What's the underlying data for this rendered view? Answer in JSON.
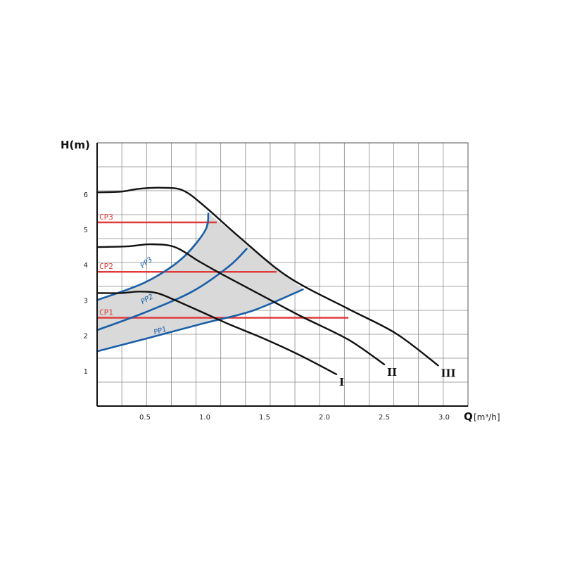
{
  "chart_data": {
    "type": "line",
    "ylabel": "H(m)",
    "xlabel_bold": "Q",
    "xlabel_unit": "[m³/h]",
    "xlim": [
      0.1,
      3.2
    ],
    "ylim": [
      0,
      7.45
    ],
    "x_ticks": [
      {
        "value": 0.5,
        "label": "0.5"
      },
      {
        "value": 1.0,
        "label": "1.0"
      },
      {
        "value": 1.5,
        "label": "1.5"
      },
      {
        "value": 2.0,
        "label": "2.0"
      },
      {
        "value": 2.5,
        "label": "2.5"
      },
      {
        "value": 3.0,
        "label": "3.0"
      }
    ],
    "y_ticks": [
      {
        "value": 1,
        "label": "1"
      },
      {
        "value": 2,
        "label": "2"
      },
      {
        "value": 3,
        "label": "3"
      },
      {
        "value": 4,
        "label": "4"
      },
      {
        "value": 5,
        "label": "5"
      },
      {
        "value": 6,
        "label": "6"
      }
    ],
    "grid": true,
    "pump_curves": [
      {
        "name": "I",
        "color": "#111111",
        "points": [
          [
            0.1,
            3.2
          ],
          [
            0.3,
            3.2
          ],
          [
            0.45,
            3.24
          ],
          [
            0.6,
            3.2
          ],
          [
            0.75,
            3.0
          ],
          [
            0.95,
            2.7
          ],
          [
            1.2,
            2.32
          ],
          [
            1.5,
            1.9
          ],
          [
            1.8,
            1.43
          ],
          [
            2.1,
            0.9
          ]
        ]
      },
      {
        "name": "II",
        "color": "#111111",
        "points": [
          [
            0.1,
            4.5
          ],
          [
            0.35,
            4.52
          ],
          [
            0.55,
            4.58
          ],
          [
            0.75,
            4.5
          ],
          [
            0.95,
            4.1
          ],
          [
            1.15,
            3.72
          ],
          [
            1.45,
            3.18
          ],
          [
            1.8,
            2.55
          ],
          [
            2.2,
            1.88
          ],
          [
            2.5,
            1.18
          ]
        ]
      },
      {
        "name": "III",
        "color": "#111111",
        "points": [
          [
            0.1,
            6.05
          ],
          [
            0.3,
            6.07
          ],
          [
            0.45,
            6.15
          ],
          [
            0.65,
            6.18
          ],
          [
            0.82,
            6.1
          ],
          [
            1.0,
            5.65
          ],
          [
            1.3,
            4.75
          ],
          [
            1.7,
            3.65
          ],
          [
            2.2,
            2.75
          ],
          [
            2.6,
            2.05
          ],
          [
            2.95,
            1.15
          ]
        ]
      }
    ],
    "pp_curves": [
      {
        "name": "PP1",
        "color": "#1a5fa8",
        "points": [
          [
            0.1,
            1.55
          ],
          [
            0.5,
            1.9
          ],
          [
            1.0,
            2.35
          ],
          [
            1.4,
            2.7
          ],
          [
            1.82,
            3.3
          ]
        ]
      },
      {
        "name": "PP2",
        "color": "#1a5fa8",
        "points": [
          [
            0.1,
            2.15
          ],
          [
            0.5,
            2.65
          ],
          [
            0.9,
            3.25
          ],
          [
            1.2,
            3.95
          ],
          [
            1.35,
            4.45
          ]
        ]
      },
      {
        "name": "PP3",
        "color": "#1a5fa8",
        "points": [
          [
            0.1,
            3.0
          ],
          [
            0.5,
            3.5
          ],
          [
            0.8,
            4.15
          ],
          [
            1.0,
            4.95
          ],
          [
            1.03,
            5.45
          ]
        ]
      }
    ],
    "cp_lines": [
      {
        "name": "CP1",
        "color": "#e03b3b",
        "y": 2.5,
        "x_end": 2.2
      },
      {
        "name": "CP2",
        "color": "#e03b3b",
        "y": 3.8,
        "x_end": 1.6
      },
      {
        "name": "CP3",
        "color": "#e03b3b",
        "y": 5.2,
        "x_end": 1.1
      }
    ],
    "shaded_region_color": "#d9d9d9"
  }
}
